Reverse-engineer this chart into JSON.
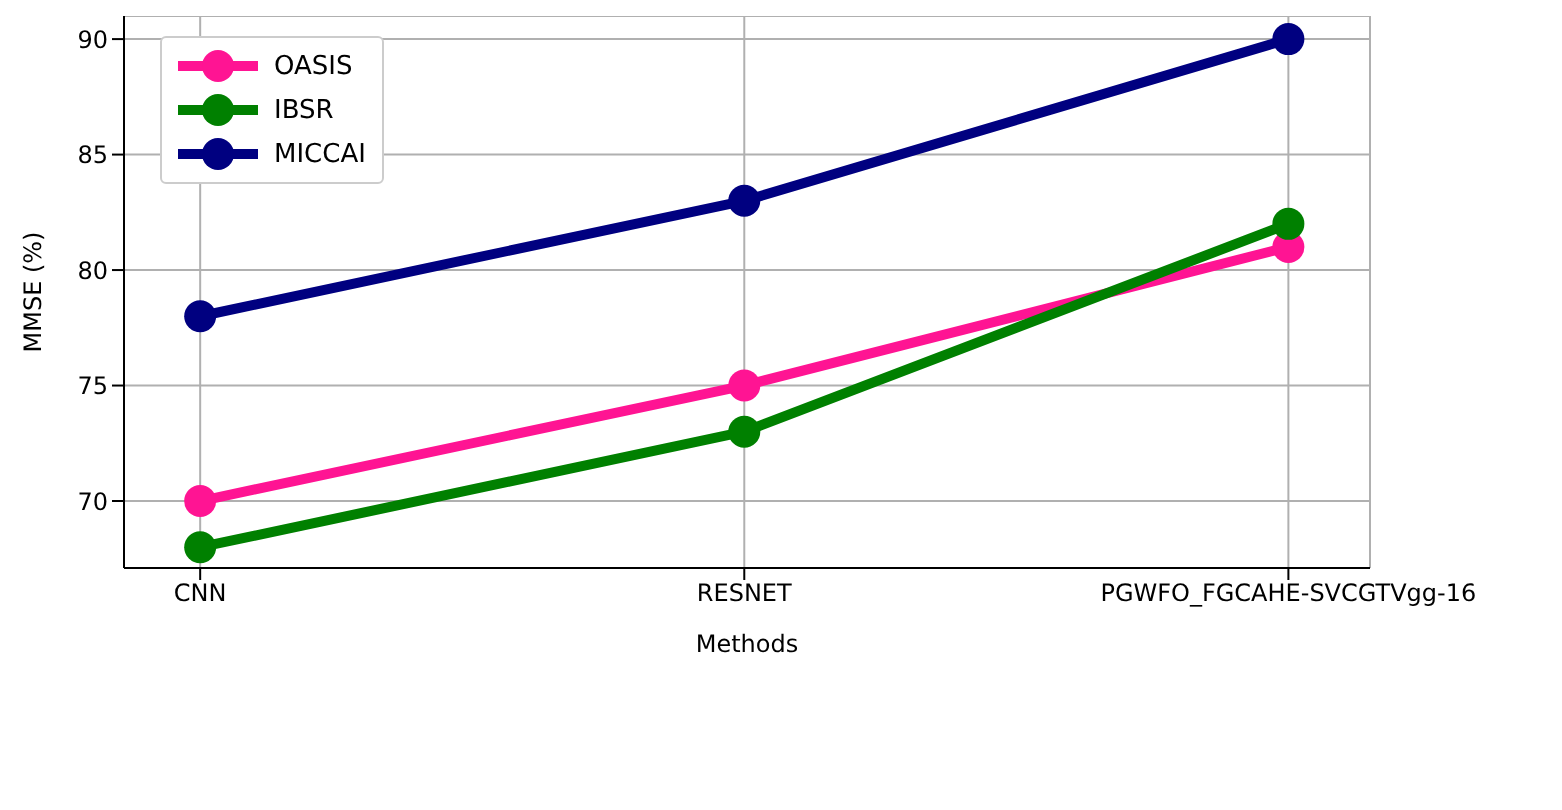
{
  "chart_data": {
    "type": "line",
    "xlabel": "Methods",
    "ylabel": "MMSE (%)",
    "categories": [
      "CNN",
      "RESNET",
      "PGWFO_FGCAHE-SVCGTVgg-16"
    ],
    "series": [
      {
        "name": "OASIS",
        "color": "#ff1493",
        "values": [
          70,
          75,
          81
        ]
      },
      {
        "name": "IBSR",
        "color": "#008000",
        "values": [
          68,
          73,
          82
        ]
      },
      {
        "name": "MICCAI",
        "color": "#000080",
        "values": [
          78,
          83,
          90
        ]
      }
    ],
    "ylim": [
      67.1,
      91
    ],
    "yticks": [
      70,
      75,
      80,
      85,
      90
    ],
    "grid": true,
    "legend": "top left",
    "marker": "circle",
    "line_style": "solid"
  }
}
